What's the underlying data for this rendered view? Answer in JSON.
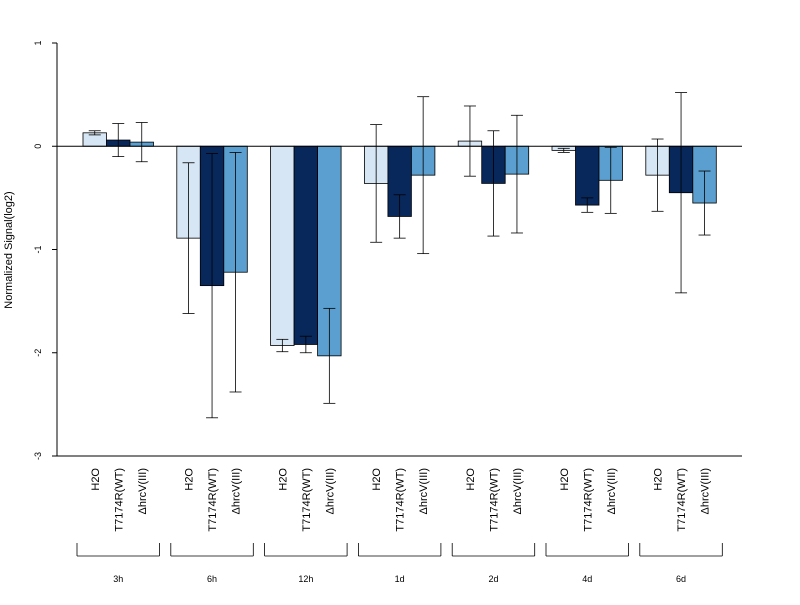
{
  "chart_data": {
    "type": "bar",
    "title": "",
    "xlabel": "",
    "ylabel": "Normalized Signal(log2)",
    "ylim": [
      -3,
      1
    ],
    "yticks": [
      "1",
      "0",
      "-1",
      "-2",
      "-3"
    ],
    "grid": false,
    "legend": "none",
    "treatments": [
      "H2O",
      "T7174R(WT)",
      "ΔhrcV(III)"
    ],
    "colors": [
      "#d6e6f4",
      "#08275a",
      "#5a9fcf"
    ],
    "groups": [
      "3h",
      "6h",
      "12h",
      "1d",
      "2d",
      "4d",
      "6d"
    ],
    "series": [
      {
        "name": "H2O",
        "values": [
          0.13,
          -0.89,
          -1.93,
          -0.36,
          0.05,
          -0.04,
          -0.28
        ],
        "error": [
          0.02,
          0.73,
          0.06,
          0.57,
          0.34,
          0.02,
          0.35
        ]
      },
      {
        "name": "T7174R(WT)",
        "values": [
          0.06,
          -1.35,
          -1.92,
          -0.68,
          -0.36,
          -0.57,
          -0.45
        ],
        "error": [
          0.16,
          1.28,
          0.08,
          0.21,
          0.51,
          0.07,
          0.97
        ]
      },
      {
        "name": "ΔhrcV(III)",
        "values": [
          0.04,
          -1.22,
          -2.03,
          -0.28,
          -0.27,
          -0.33,
          -0.55
        ],
        "error": [
          0.19,
          1.16,
          0.46,
          0.76,
          0.57,
          0.32,
          0.31
        ]
      }
    ]
  }
}
